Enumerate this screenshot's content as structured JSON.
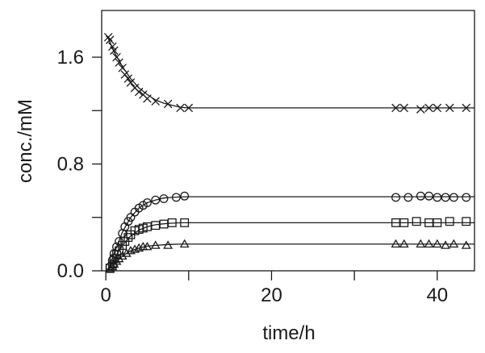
{
  "chart_data": {
    "type": "scatter",
    "title": "",
    "xlabel": "time/h",
    "ylabel": "conc./mM",
    "xlim": [
      -0.5,
      44.5
    ],
    "ylim": [
      0.0,
      1.95
    ],
    "xticks": [
      0,
      20,
      40
    ],
    "xtick_labels": [
      "0",
      "20",
      "40"
    ],
    "xticks_minor": [
      10,
      30
    ],
    "yticks": [
      0.0,
      0.8,
      1.6
    ],
    "ytick_labels": [
      "0.0",
      "0.8",
      "1.6"
    ],
    "yticks_minor": [
      0.4,
      1.2
    ],
    "grid": false,
    "legend": "none",
    "series": [
      {
        "marker": "x",
        "points": [
          [
            0.3,
            1.75
          ],
          [
            0.5,
            1.73
          ],
          [
            0.8,
            1.68
          ],
          [
            1.0,
            1.65
          ],
          [
            1.3,
            1.6
          ],
          [
            1.6,
            1.56
          ],
          [
            2.0,
            1.52
          ],
          [
            2.3,
            1.47
          ],
          [
            2.7,
            1.44
          ],
          [
            3.0,
            1.41
          ],
          [
            3.5,
            1.37
          ],
          [
            4.0,
            1.34
          ],
          [
            4.5,
            1.32
          ],
          [
            5.0,
            1.29
          ],
          [
            6.0,
            1.27
          ],
          [
            7.5,
            1.25
          ],
          [
            9.0,
            1.22
          ],
          [
            10.0,
            1.22
          ],
          [
            35.0,
            1.22
          ],
          [
            36.0,
            1.22
          ],
          [
            38.0,
            1.21
          ],
          [
            39.0,
            1.22
          ],
          [
            40.0,
            1.22
          ],
          [
            41.5,
            1.22
          ],
          [
            43.5,
            1.22
          ]
        ],
        "fit": [
          [
            0.3,
            1.74
          ],
          [
            1,
            1.64
          ],
          [
            2,
            1.53
          ],
          [
            3,
            1.44
          ],
          [
            4,
            1.37
          ],
          [
            5,
            1.32
          ],
          [
            6,
            1.28
          ],
          [
            7,
            1.255
          ],
          [
            8,
            1.24
          ],
          [
            9,
            1.225
          ],
          [
            10,
            1.22
          ],
          [
            44.5,
            1.22
          ]
        ]
      },
      {
        "marker": "circle",
        "points": [
          [
            0.5,
            0.03
          ],
          [
            0.8,
            0.08
          ],
          [
            1.0,
            0.13
          ],
          [
            1.3,
            0.18
          ],
          [
            1.6,
            0.22
          ],
          [
            2.0,
            0.28
          ],
          [
            2.3,
            0.33
          ],
          [
            2.7,
            0.37
          ],
          [
            3.0,
            0.4
          ],
          [
            3.5,
            0.44
          ],
          [
            4.0,
            0.47
          ],
          [
            4.5,
            0.49
          ],
          [
            5.0,
            0.51
          ],
          [
            6.0,
            0.53
          ],
          [
            7.0,
            0.54
          ],
          [
            8.5,
            0.55
          ],
          [
            9.5,
            0.56
          ],
          [
            35.0,
            0.55
          ],
          [
            36.5,
            0.55
          ],
          [
            38.0,
            0.56
          ],
          [
            39.0,
            0.56
          ],
          [
            40.0,
            0.55
          ],
          [
            41.0,
            0.55
          ],
          [
            42.0,
            0.55
          ],
          [
            43.5,
            0.55
          ]
        ],
        "fit": [
          [
            0.3,
            0.01
          ],
          [
            1,
            0.13
          ],
          [
            2,
            0.29
          ],
          [
            3,
            0.4
          ],
          [
            4,
            0.47
          ],
          [
            5,
            0.51
          ],
          [
            6,
            0.53
          ],
          [
            7,
            0.545
          ],
          [
            8,
            0.55
          ],
          [
            9,
            0.553
          ],
          [
            10,
            0.555
          ],
          [
            44.5,
            0.555
          ]
        ]
      },
      {
        "marker": "square",
        "points": [
          [
            0.5,
            0.02
          ],
          [
            0.8,
            0.05
          ],
          [
            1.0,
            0.09
          ],
          [
            1.3,
            0.12
          ],
          [
            1.6,
            0.15
          ],
          [
            2.0,
            0.19
          ],
          [
            2.3,
            0.22
          ],
          [
            2.7,
            0.25
          ],
          [
            3.0,
            0.27
          ],
          [
            3.5,
            0.3
          ],
          [
            4.0,
            0.31
          ],
          [
            4.5,
            0.32
          ],
          [
            5.0,
            0.33
          ],
          [
            6.0,
            0.34
          ],
          [
            7.0,
            0.35
          ],
          [
            8.0,
            0.36
          ],
          [
            9.5,
            0.36
          ],
          [
            35.0,
            0.36
          ],
          [
            36.0,
            0.36
          ],
          [
            37.5,
            0.37
          ],
          [
            39.0,
            0.36
          ],
          [
            40.0,
            0.36
          ],
          [
            41.5,
            0.37
          ],
          [
            43.5,
            0.37
          ]
        ],
        "fit": [
          [
            0.3,
            0.01
          ],
          [
            1,
            0.09
          ],
          [
            2,
            0.19
          ],
          [
            3,
            0.26
          ],
          [
            4,
            0.305
          ],
          [
            5,
            0.33
          ],
          [
            6,
            0.345
          ],
          [
            7,
            0.352
          ],
          [
            8,
            0.357
          ],
          [
            9,
            0.36
          ],
          [
            10,
            0.36
          ],
          [
            44.5,
            0.36
          ]
        ]
      },
      {
        "marker": "triangle",
        "points": [
          [
            0.5,
            0.01
          ],
          [
            0.8,
            0.03
          ],
          [
            1.0,
            0.05
          ],
          [
            1.3,
            0.07
          ],
          [
            1.6,
            0.09
          ],
          [
            2.0,
            0.11
          ],
          [
            2.5,
            0.13
          ],
          [
            3.0,
            0.15
          ],
          [
            3.5,
            0.16
          ],
          [
            4.0,
            0.17
          ],
          [
            4.5,
            0.18
          ],
          [
            5.0,
            0.18
          ],
          [
            6.0,
            0.19
          ],
          [
            7.5,
            0.19
          ],
          [
            9.5,
            0.2
          ],
          [
            35.0,
            0.2
          ],
          [
            36.0,
            0.2
          ],
          [
            38.0,
            0.2
          ],
          [
            39.0,
            0.2
          ],
          [
            40.0,
            0.2
          ],
          [
            41.0,
            0.19
          ],
          [
            42.0,
            0.2
          ],
          [
            43.5,
            0.19
          ]
        ],
        "fit": [
          [
            0.3,
            0.005
          ],
          [
            1,
            0.05
          ],
          [
            2,
            0.11
          ],
          [
            3,
            0.15
          ],
          [
            4,
            0.17
          ],
          [
            5,
            0.185
          ],
          [
            6,
            0.19
          ],
          [
            7,
            0.195
          ],
          [
            8,
            0.198
          ],
          [
            9,
            0.2
          ],
          [
            10,
            0.2
          ],
          [
            44.5,
            0.2
          ]
        ]
      }
    ]
  }
}
